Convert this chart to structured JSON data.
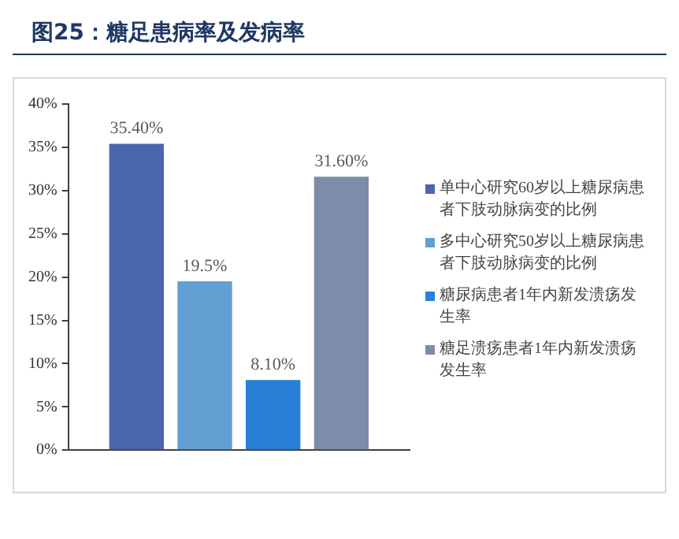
{
  "chart_data": {
    "type": "bar",
    "title": "图25：糖足患病率及发病率",
    "categories": [
      null
    ],
    "series": [
      {
        "name": "单中心研究60岁以上糖尿病患者下肢动脉病变的比例",
        "color": "#4a66ad",
        "values": [
          35.4
        ],
        "value_labels": [
          "35.40%"
        ]
      },
      {
        "name": "多中心研究50岁以上糖尿病患者下肢动脉病变的比例",
        "color": "#629fd3",
        "values": [
          19.5
        ],
        "value_labels": [
          "19.5%"
        ]
      },
      {
        "name": "糖尿病患者1年内新发溃疡发生率",
        "color": "#2a7fd6",
        "values": [
          8.1
        ],
        "value_labels": [
          "8.10%"
        ]
      },
      {
        "name": "糖足溃疡患者1年内新发溃疡发生率",
        "color": "#7d8ca8",
        "values": [
          31.6
        ],
        "value_labels": [
          "31.60%"
        ]
      }
    ],
    "ylim": [
      0,
      40
    ],
    "yticks": [
      {
        "value": 0,
        "label": "0%"
      },
      {
        "value": 5,
        "label": "5%"
      },
      {
        "value": 10,
        "label": "10%"
      },
      {
        "value": 15,
        "label": "15%"
      },
      {
        "value": 20,
        "label": "20%"
      },
      {
        "value": 25,
        "label": "25%"
      },
      {
        "value": 30,
        "label": "30%"
      },
      {
        "value": 35,
        "label": "35%"
      },
      {
        "value": 40,
        "label": "40%"
      }
    ],
    "grid": false,
    "legend": "right"
  }
}
